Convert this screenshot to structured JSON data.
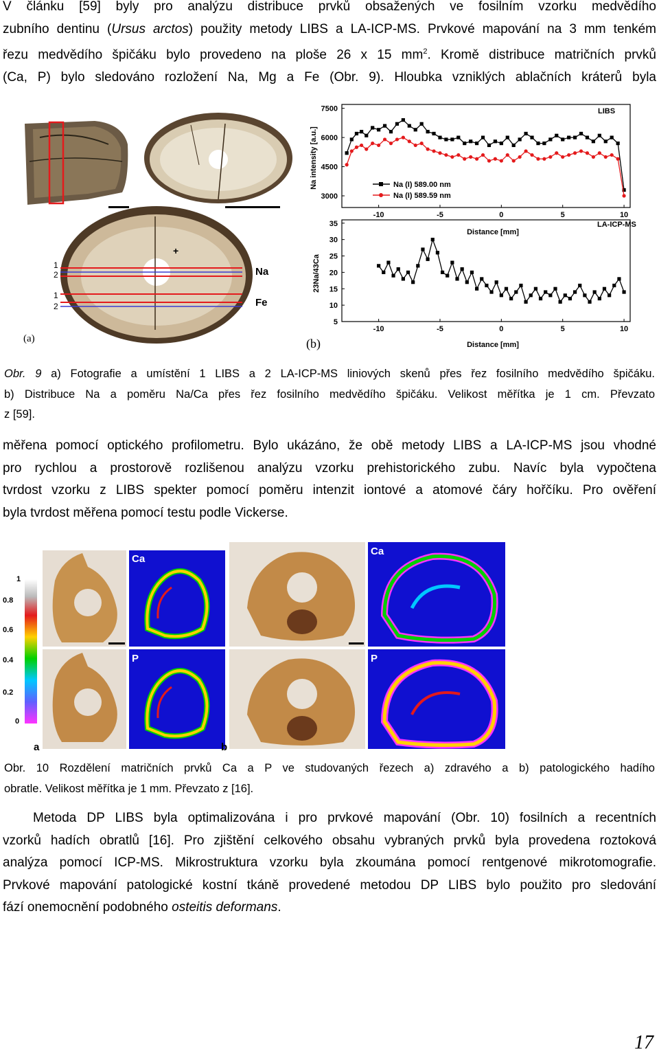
{
  "para1": {
    "l1": "V článku [59] byly pro analýzu distribuce prvků obsažených ve fosilním vzorku medvědího",
    "l2_a": "zubního dentinu (",
    "l2_i": "Ursus arctos",
    "l2_b": ") použity metody LIBS a LA-ICP-MS. Prvkové mapování na 3 mm tenkém",
    "l3_a": "řezu medvědího špičáku bylo provedeno na ploše 26 x 15 mm",
    "l3_sup": "2",
    "l3_b": ". Kromě distribuce matričních prvků",
    "l4": "(Ca, P) bylo sledováno rozložení Na, Mg a Fe (Obr. 9). Hloubka vzniklých ablačních kráterů byla"
  },
  "fig9": {
    "panel_a_label": "(a)",
    "panel_b_label": "(b)",
    "na_label": "Na",
    "fe_label": "Fe",
    "line_nums": [
      "1",
      "2",
      "1",
      "2"
    ],
    "plus": "+",
    "libs": {
      "title": "LIBS",
      "ylabel": "Na intensity [a.u.]",
      "yticks": [
        "7500",
        "6000",
        "4500",
        "3000"
      ],
      "legend1": "Na (I) 589.00 nm",
      "legend2": "Na (I) 589.59 nm",
      "xlabel": "Distance [mm]"
    },
    "laicp": {
      "title": "LA-ICP-MS",
      "ylabel": "23Na/43Ca",
      "yticks": [
        "35",
        "30",
        "25",
        "20",
        "15",
        "10",
        "5"
      ],
      "xlabel": "Distance [mm]"
    },
    "xticks": [
      "-10",
      "-5",
      "0",
      "5",
      "10"
    ]
  },
  "chart_data": [
    {
      "type": "line",
      "title": "LIBS",
      "ylabel": "Na intensity [a.u.]",
      "xlabel": "Distance [mm]",
      "xlim": [
        -13,
        10.5
      ],
      "ylim": [
        2400,
        7700
      ],
      "series": [
        {
          "name": "Na (I) 589.00 nm",
          "color": "#000000",
          "x": [
            -12.6,
            -12.2,
            -11.8,
            -11.4,
            -11,
            -10.5,
            -10,
            -9.5,
            -9,
            -8.5,
            -8,
            -7.5,
            -7,
            -6.5,
            -6,
            -5.5,
            -5,
            -4.5,
            -4,
            -3.5,
            -3,
            -2.5,
            -2,
            -1.5,
            -1,
            -0.5,
            0,
            0.5,
            1,
            1.5,
            2,
            2.5,
            3,
            3.5,
            4,
            4.5,
            5,
            5.5,
            6,
            6.5,
            7,
            7.5,
            8,
            8.5,
            9,
            9.5,
            10
          ],
          "y": [
            5200,
            5900,
            6200,
            6300,
            6100,
            6500,
            6400,
            6600,
            6300,
            6700,
            6900,
            6600,
            6400,
            6700,
            6300,
            6200,
            6000,
            5900,
            5900,
            6000,
            5700,
            5800,
            5700,
            6000,
            5600,
            5800,
            5700,
            6000,
            5600,
            5900,
            6200,
            6000,
            5700,
            5700,
            5900,
            6100,
            5900,
            6000,
            6000,
            6200,
            6000,
            5800,
            6100,
            5800,
            6000,
            5700,
            3300
          ]
        },
        {
          "name": "Na (I) 589.59 nm",
          "color": "#e41a1c",
          "x": [
            -12.6,
            -12.2,
            -11.8,
            -11.4,
            -11,
            -10.5,
            -10,
            -9.5,
            -9,
            -8.5,
            -8,
            -7.5,
            -7,
            -6.5,
            -6,
            -5.5,
            -5,
            -4.5,
            -4,
            -3.5,
            -3,
            -2.5,
            -2,
            -1.5,
            -1,
            -0.5,
            0,
            0.5,
            1,
            1.5,
            2,
            2.5,
            3,
            3.5,
            4,
            4.5,
            5,
            5.5,
            6,
            6.5,
            7,
            7.5,
            8,
            8.5,
            9,
            9.5,
            10
          ],
          "y": [
            4600,
            5300,
            5500,
            5600,
            5400,
            5700,
            5600,
            5900,
            5700,
            5900,
            6000,
            5800,
            5600,
            5700,
            5400,
            5300,
            5200,
            5100,
            5000,
            5100,
            4900,
            5000,
            4900,
            5100,
            4800,
            4900,
            4800,
            5100,
            4800,
            5000,
            5300,
            5100,
            4900,
            4900,
            5000,
            5200,
            5000,
            5100,
            5200,
            5300,
            5200,
            5000,
            5200,
            5000,
            5100,
            4900,
            3000
          ]
        }
      ]
    },
    {
      "type": "line",
      "title": "LA-ICP-MS",
      "ylabel": "23Na/43Ca",
      "xlabel": "Distance [mm]",
      "xlim": [
        -13,
        10.5
      ],
      "ylim": [
        5,
        36
      ],
      "series": [
        {
          "color": "#000000",
          "x": [
            -10,
            -9.6,
            -9.2,
            -8.8,
            -8.4,
            -8,
            -7.6,
            -7.2,
            -6.8,
            -6.4,
            -6,
            -5.6,
            -5.2,
            -4.8,
            -4.4,
            -4,
            -3.6,
            -3.2,
            -2.8,
            -2.4,
            -2,
            -1.6,
            -1.2,
            -0.8,
            -0.4,
            0,
            0.4,
            0.8,
            1.2,
            1.6,
            2,
            2.4,
            2.8,
            3.2,
            3.6,
            4,
            4.4,
            4.8,
            5.2,
            5.6,
            6,
            6.4,
            6.8,
            7.2,
            7.6,
            8,
            8.4,
            8.8,
            9.2,
            9.6,
            10
          ],
          "y": [
            22,
            20,
            23,
            19,
            21,
            18,
            20,
            17,
            22,
            27,
            24,
            30,
            26,
            20,
            19,
            23,
            18,
            21,
            17,
            20,
            15,
            18,
            16,
            14,
            17,
            13,
            15,
            12,
            14,
            16,
            11,
            13,
            15,
            12,
            14,
            13,
            15,
            11,
            13,
            12,
            14,
            16,
            13,
            11,
            14,
            12,
            15,
            13,
            16,
            18,
            14
          ]
        }
      ]
    }
  ],
  "caption9": {
    "l1_prefix": "Obr. 9",
    "l1_rest": " a) Fotografie a umístění 1 LIBS a 2 LA-ICP-MS liniových skenů přes řez fosilního medvědího špičáku.",
    "l2": "b) Distribuce Na a poměru Na/Ca přes řez fosilního medvědího špičáku. Velikost měřítka je 1 cm. Převzato",
    "l3": "z [59]."
  },
  "para2": {
    "l1": "měřena pomocí optického profilometru. Bylo ukázáno, že obě metody LIBS a LA-ICP-MS jsou vhodné",
    "l2": "pro rychlou a prostorově rozlišenou analýzu vzorku prehistorického zubu. Navíc byla vypočtena",
    "l3": "tvrdost vzorku z LIBS spekter pomocí poměru intenzit iontové a atomové čáry hořčíku. Pro ověření",
    "l4": "byla tvrdost měřena pomocí testu podle Vickerse."
  },
  "fig10": {
    "scale": [
      "1",
      "0.8",
      "0.6",
      "0.4",
      "0.2",
      "0"
    ],
    "label_a": "a",
    "label_b": "b",
    "ca": "Ca",
    "p": "P"
  },
  "caption10": {
    "l1_prefix": "Obr. 10",
    "l1_rest": " Rozdělení matričních prvků Ca a P ve studovaných řezech a) zdravého a b) patologického hadího",
    "l2": "obratle. Velikost měřítka je 1 mm. Převzato z [16]."
  },
  "para3": {
    "l1": "Metoda DP LIBS byla optimalizována i pro prvkové mapování (Obr. 10) fosilních a recentních",
    "l2": "vzorků hadích obratlů [16]. Pro zjištění celkového obsahu vybraných prvků byla provedena roztoková",
    "l3": "analýza pomocí ICP-MS. Mikrostruktura vzorku byla zkoumána pomocí rentgenové mikrotomografie.",
    "l4": "Prvkové mapování patologické kostní tkáně provedené metodou DP LIBS bylo použito pro sledování",
    "l5_a": "fází onemocnění podobného ",
    "l5_i": "osteitis deformans",
    "l5_b": "."
  },
  "page_number": "17"
}
